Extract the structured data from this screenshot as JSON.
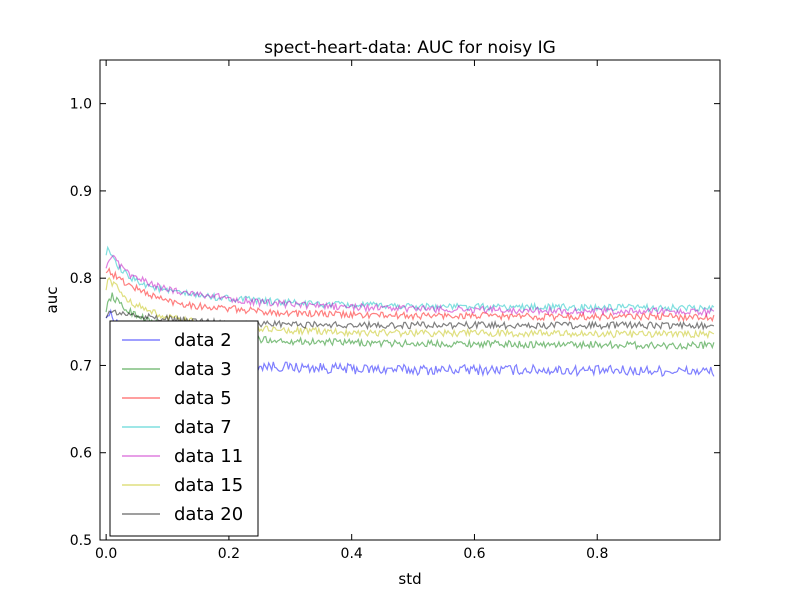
{
  "chart_data": {
    "type": "line",
    "title": "spect-heart-data: AUC for noisy IG",
    "xlabel": "std",
    "ylabel": "auc",
    "xlim": [
      -0.01,
      1.0
    ],
    "ylim": [
      0.5,
      1.05
    ],
    "x_ticks": [
      0.0,
      0.2,
      0.4,
      0.6,
      0.8
    ],
    "x_tick_labels": [
      "0.0",
      "0.2",
      "0.4",
      "0.6",
      "0.8"
    ],
    "y_ticks": [
      0.5,
      0.6,
      0.7,
      0.8,
      0.9,
      1.0
    ],
    "y_tick_labels": [
      "0.5",
      "0.6",
      "0.7",
      "0.8",
      "0.9",
      "1.0"
    ],
    "grid": false,
    "legend_position": "lower-left",
    "x": [
      0.0,
      0.005,
      0.01,
      0.02,
      0.03,
      0.05,
      0.075,
      0.1,
      0.15,
      0.2,
      0.25,
      0.3,
      0.35,
      0.4,
      0.5,
      0.6,
      0.7,
      0.8,
      0.9,
      0.99
    ],
    "series": [
      {
        "name": "data 2",
        "color": "#0000ff",
        "values": [
          0.76,
          0.758,
          0.756,
          0.748,
          0.742,
          0.735,
          0.728,
          0.72,
          0.712,
          0.705,
          0.7,
          0.698,
          0.697,
          0.696,
          0.695,
          0.695,
          0.695,
          0.694,
          0.694,
          0.693
        ]
      },
      {
        "name": "data 3",
        "color": "#008000",
        "values": [
          0.765,
          0.775,
          0.78,
          0.772,
          0.765,
          0.758,
          0.75,
          0.745,
          0.738,
          0.733,
          0.73,
          0.728,
          0.727,
          0.726,
          0.725,
          0.725,
          0.724,
          0.724,
          0.723,
          0.723
        ]
      },
      {
        "name": "data 5",
        "color": "#ff0000",
        "values": [
          0.81,
          0.808,
          0.805,
          0.8,
          0.795,
          0.788,
          0.78,
          0.774,
          0.768,
          0.765,
          0.762,
          0.76,
          0.759,
          0.758,
          0.757,
          0.757,
          0.756,
          0.756,
          0.756,
          0.755
        ]
      },
      {
        "name": "data 7",
        "color": "#00bfbf",
        "values": [
          0.83,
          0.835,
          0.822,
          0.812,
          0.805,
          0.797,
          0.79,
          0.785,
          0.78,
          0.777,
          0.774,
          0.772,
          0.77,
          0.769,
          0.768,
          0.767,
          0.767,
          0.766,
          0.766,
          0.765
        ]
      },
      {
        "name": "data 11",
        "color": "#bf00bf",
        "values": [
          0.815,
          0.822,
          0.825,
          0.816,
          0.808,
          0.8,
          0.793,
          0.787,
          0.782,
          0.777,
          0.772,
          0.77,
          0.768,
          0.767,
          0.765,
          0.764,
          0.763,
          0.762,
          0.762,
          0.761
        ]
      },
      {
        "name": "data 15",
        "color": "#bfbf00",
        "values": [
          0.79,
          0.8,
          0.795,
          0.787,
          0.778,
          0.769,
          0.761,
          0.755,
          0.749,
          0.745,
          0.742,
          0.74,
          0.739,
          0.738,
          0.737,
          0.737,
          0.737,
          0.736,
          0.736,
          0.736
        ]
      },
      {
        "name": "data 20",
        "color": "#000000",
        "values": [
          0.758,
          0.76,
          0.761,
          0.76,
          0.759,
          0.757,
          0.755,
          0.753,
          0.751,
          0.749,
          0.748,
          0.747,
          0.747,
          0.746,
          0.746,
          0.746,
          0.746,
          0.746,
          0.746,
          0.746
        ]
      }
    ]
  }
}
